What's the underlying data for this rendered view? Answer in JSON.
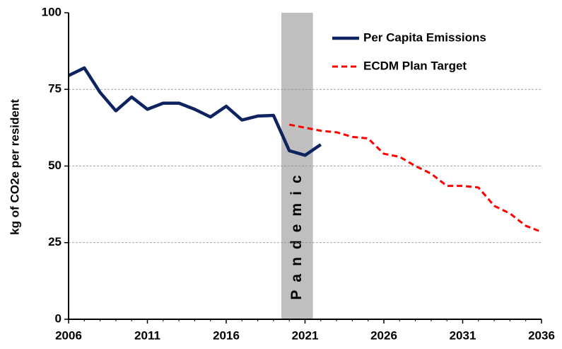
{
  "chart_data": {
    "type": "line",
    "ylabel": "kg  of CO2e per resident",
    "x": [
      2006,
      2007,
      2008,
      2009,
      2010,
      2011,
      2012,
      2013,
      2014,
      2015,
      2016,
      2017,
      2018,
      2019,
      2020,
      2021,
      2022,
      2023,
      2024,
      2025,
      2026,
      2027,
      2028,
      2029,
      2030,
      2031,
      2032,
      2033,
      2034,
      2035,
      2036
    ],
    "series": [
      {
        "name": "Per Capita Emissions",
        "color": "#0d2461",
        "style": "solid",
        "values": [
          79.5,
          82,
          74,
          68,
          72.5,
          68.5,
          70.5,
          70.5,
          68.5,
          66,
          69.5,
          65,
          66.3,
          66.5,
          55,
          53.5,
          57,
          null,
          null,
          null,
          null,
          null,
          null,
          null,
          null,
          null,
          null,
          null,
          null,
          null,
          null
        ]
      },
      {
        "name": "ECDM Plan Target",
        "color": "#ff0000",
        "style": "dashed",
        "values": [
          null,
          null,
          null,
          null,
          null,
          null,
          null,
          null,
          null,
          null,
          null,
          null,
          null,
          null,
          63.5,
          62.5,
          61.5,
          61,
          59.5,
          59,
          54,
          53,
          50,
          47.5,
          43.5,
          43.5,
          43,
          37,
          34.5,
          30.5,
          28.5
        ]
      }
    ],
    "xlim": [
      2006,
      2036
    ],
    "xticks": [
      2006,
      2011,
      2016,
      2021,
      2026,
      2031,
      2036
    ],
    "ylim": [
      0,
      100
    ],
    "yticks": [
      0,
      25,
      50,
      75,
      100
    ],
    "grid": true,
    "band": {
      "label": "Pandemic",
      "xrange": [
        2019.5,
        2021.5
      ],
      "color": "#bfbfbf"
    },
    "legend": "upper right"
  }
}
